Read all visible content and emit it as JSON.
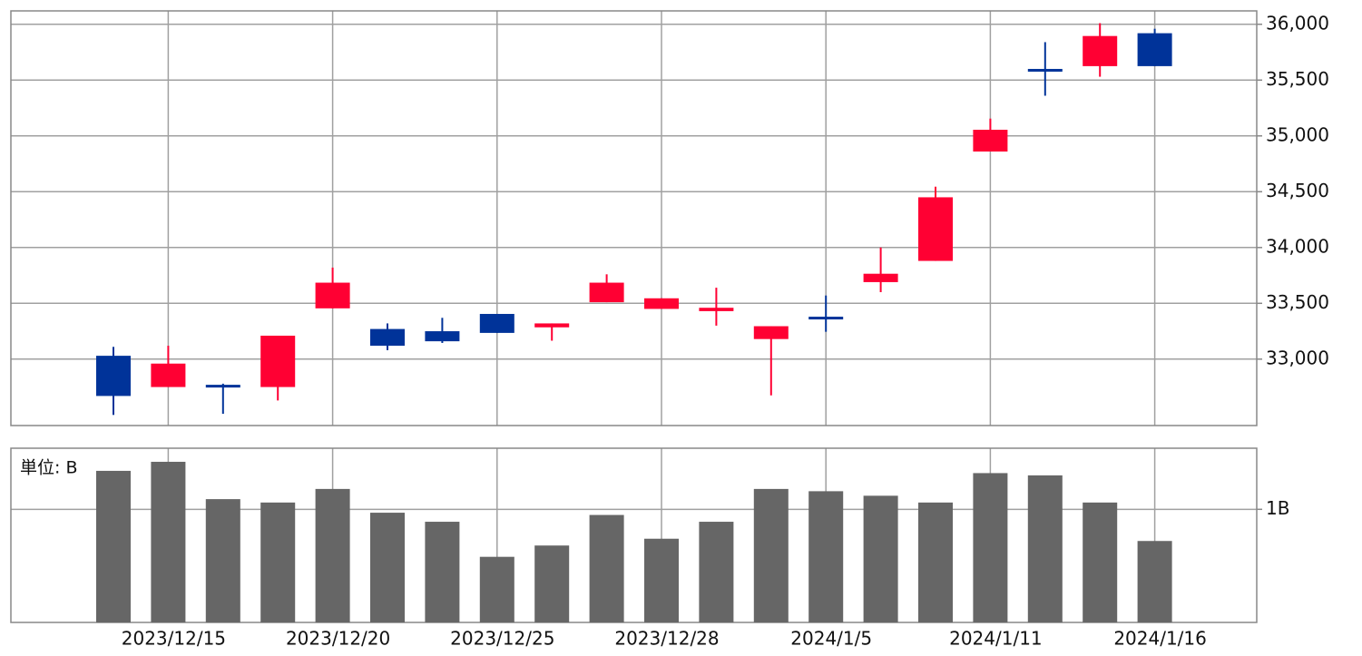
{
  "chart_data": [
    {
      "type": "candlestick",
      "categories": [
        null,
        "2023/12/15",
        null,
        null,
        "2023/12/20",
        null,
        null,
        "2023/12/25",
        null,
        null,
        "2023/12/28",
        null,
        null,
        "2024/1/5",
        null,
        null,
        "2024/1/11",
        null,
        null,
        "2024/1/16"
      ],
      "series": {
        "open": [
          33030,
          32750,
          32770,
          32750,
          33455,
          33270,
          33250,
          33405,
          33285,
          33510,
          33450,
          33430,
          33180,
          33380,
          33690,
          33880,
          34860,
          35600,
          35625,
          35920
        ],
        "high": [
          33110,
          33120,
          32780,
          33210,
          33820,
          33320,
          33370,
          33405,
          33320,
          33760,
          33545,
          33640,
          33295,
          33570,
          34000,
          34545,
          35155,
          35840,
          36010,
          35960
        ],
        "low": [
          32500,
          32750,
          32510,
          32630,
          33455,
          33080,
          33145,
          33235,
          33165,
          33510,
          33450,
          33300,
          32675,
          33245,
          33600,
          33880,
          34860,
          35360,
          35530,
          35625
        ],
        "close": [
          32670,
          32960,
          32760,
          33210,
          33685,
          33120,
          33160,
          33235,
          33320,
          33685,
          33545,
          33460,
          33295,
          33370,
          33765,
          34450,
          35055,
          35590,
          35895,
          35625
        ]
      },
      "up_color": "#ff0033",
      "down_color": "#003399",
      "ylim": [
        32405,
        36120
      ],
      "yticks": [
        {
          "value": 33000,
          "label": "33,000"
        },
        {
          "value": 33500,
          "label": "33,500"
        },
        {
          "value": 34000,
          "label": "34,000"
        },
        {
          "value": 34500,
          "label": "34,500"
        },
        {
          "value": 35000,
          "label": "35,000"
        },
        {
          "value": 35500,
          "label": "35,500"
        },
        {
          "value": 36000,
          "label": "36,000"
        }
      ],
      "grid": true
    },
    {
      "type": "bar",
      "unit_label": "単位: B",
      "values": [
        1.34,
        1.42,
        1.09,
        1.06,
        1.18,
        0.97,
        0.89,
        0.58,
        0.68,
        0.95,
        0.74,
        0.89,
        1.18,
        1.16,
        1.12,
        1.06,
        1.32,
        1.3,
        1.06,
        0.72
      ],
      "color": "#666666",
      "ylim": [
        0,
        1.54
      ],
      "yticks": [
        {
          "value": 1,
          "label": "1B"
        }
      ],
      "grid": true
    }
  ]
}
